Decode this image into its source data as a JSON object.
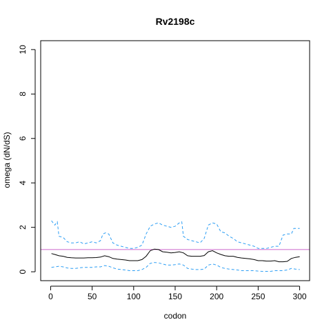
{
  "chart_data": {
    "type": "line",
    "title": "Rv2198c",
    "xlabel": "codon",
    "ylabel": "omega (dN/dS)",
    "xlim": [
      -12,
      312
    ],
    "ylim": [
      -0.4,
      10.4
    ],
    "xticks": [
      0,
      50,
      100,
      150,
      200,
      250,
      300
    ],
    "yticks": [
      0,
      2,
      4,
      6,
      8,
      10
    ],
    "grid": false,
    "reference_line": {
      "y": 1,
      "color": "#cc66cc"
    },
    "series": [
      {
        "role": "upper",
        "color": "#2a9df4",
        "dash": "dashed",
        "x": [
          1,
          5,
          8,
          10,
          15,
          20,
          25,
          30,
          35,
          40,
          45,
          50,
          55,
          60,
          63,
          66,
          70,
          75,
          80,
          85,
          90,
          95,
          100,
          105,
          110,
          115,
          120,
          125,
          130,
          135,
          140,
          145,
          150,
          155,
          158,
          160,
          165,
          170,
          175,
          180,
          185,
          190,
          195,
          200,
          205,
          210,
          215,
          220,
          225,
          230,
          235,
          240,
          245,
          250,
          255,
          260,
          265,
          270,
          275,
          280,
          285,
          290,
          293,
          296,
          300
        ],
        "y": [
          2.3,
          2.1,
          2.25,
          1.6,
          1.55,
          1.35,
          1.3,
          1.3,
          1.35,
          1.25,
          1.3,
          1.35,
          1.3,
          1.4,
          1.7,
          1.75,
          1.7,
          1.3,
          1.2,
          1.15,
          1.1,
          1.05,
          1.05,
          1.1,
          1.2,
          1.7,
          2.05,
          2.15,
          2.2,
          2.1,
          2.05,
          2.0,
          2.05,
          2.2,
          2.25,
          1.6,
          1.45,
          1.4,
          1.35,
          1.3,
          1.5,
          2.1,
          2.2,
          2.15,
          1.8,
          1.75,
          1.6,
          1.5,
          1.35,
          1.3,
          1.25,
          1.2,
          1.15,
          1.05,
          1.05,
          1.05,
          1.1,
          1.15,
          1.15,
          1.65,
          1.7,
          1.7,
          1.95,
          1.95,
          1.95
        ]
      },
      {
        "role": "estimate",
        "color": "#000000",
        "dash": "solid",
        "x": [
          1,
          5,
          10,
          15,
          20,
          25,
          30,
          35,
          40,
          45,
          50,
          55,
          60,
          65,
          70,
          75,
          80,
          85,
          90,
          95,
          100,
          105,
          110,
          115,
          120,
          125,
          130,
          135,
          140,
          145,
          150,
          155,
          160,
          165,
          170,
          175,
          180,
          185,
          190,
          195,
          200,
          205,
          210,
          215,
          220,
          225,
          230,
          235,
          240,
          245,
          250,
          255,
          260,
          265,
          270,
          275,
          280,
          285,
          290,
          295,
          300
        ],
        "y": [
          0.82,
          0.78,
          0.72,
          0.7,
          0.65,
          0.63,
          0.62,
          0.62,
          0.62,
          0.63,
          0.63,
          0.64,
          0.66,
          0.72,
          0.68,
          0.6,
          0.57,
          0.55,
          0.53,
          0.5,
          0.5,
          0.5,
          0.55,
          0.7,
          0.95,
          1.02,
          1.0,
          0.9,
          0.88,
          0.85,
          0.87,
          0.9,
          0.85,
          0.72,
          0.7,
          0.7,
          0.7,
          0.73,
          0.9,
          0.95,
          0.85,
          0.78,
          0.72,
          0.7,
          0.7,
          0.65,
          0.62,
          0.6,
          0.58,
          0.55,
          0.5,
          0.5,
          0.48,
          0.48,
          0.5,
          0.45,
          0.45,
          0.47,
          0.6,
          0.65,
          0.68
        ]
      },
      {
        "role": "lower",
        "color": "#2a9df4",
        "dash": "dashed",
        "x": [
          1,
          5,
          10,
          15,
          20,
          25,
          30,
          35,
          40,
          45,
          50,
          55,
          60,
          65,
          70,
          75,
          80,
          85,
          90,
          95,
          100,
          105,
          110,
          115,
          120,
          125,
          130,
          135,
          140,
          145,
          150,
          155,
          160,
          165,
          170,
          175,
          180,
          185,
          190,
          195,
          200,
          205,
          210,
          215,
          220,
          225,
          230,
          235,
          240,
          245,
          250,
          255,
          260,
          265,
          270,
          275,
          280,
          285,
          290,
          295,
          300
        ],
        "y": [
          0.2,
          0.22,
          0.25,
          0.22,
          0.17,
          0.15,
          0.15,
          0.18,
          0.2,
          0.2,
          0.2,
          0.22,
          0.22,
          0.28,
          0.25,
          0.18,
          0.12,
          0.1,
          0.08,
          0.05,
          0.05,
          0.05,
          0.1,
          0.2,
          0.38,
          0.42,
          0.4,
          0.35,
          0.3,
          0.3,
          0.32,
          0.35,
          0.3,
          0.15,
          0.12,
          0.1,
          0.1,
          0.12,
          0.3,
          0.35,
          0.3,
          0.2,
          0.15,
          0.12,
          0.1,
          0.08,
          0.05,
          0.05,
          0.05,
          0.05,
          0.03,
          0.02,
          0.02,
          0.02,
          0.05,
          0.05,
          0.05,
          0.08,
          0.15,
          0.12,
          0.1
        ]
      }
    ]
  }
}
